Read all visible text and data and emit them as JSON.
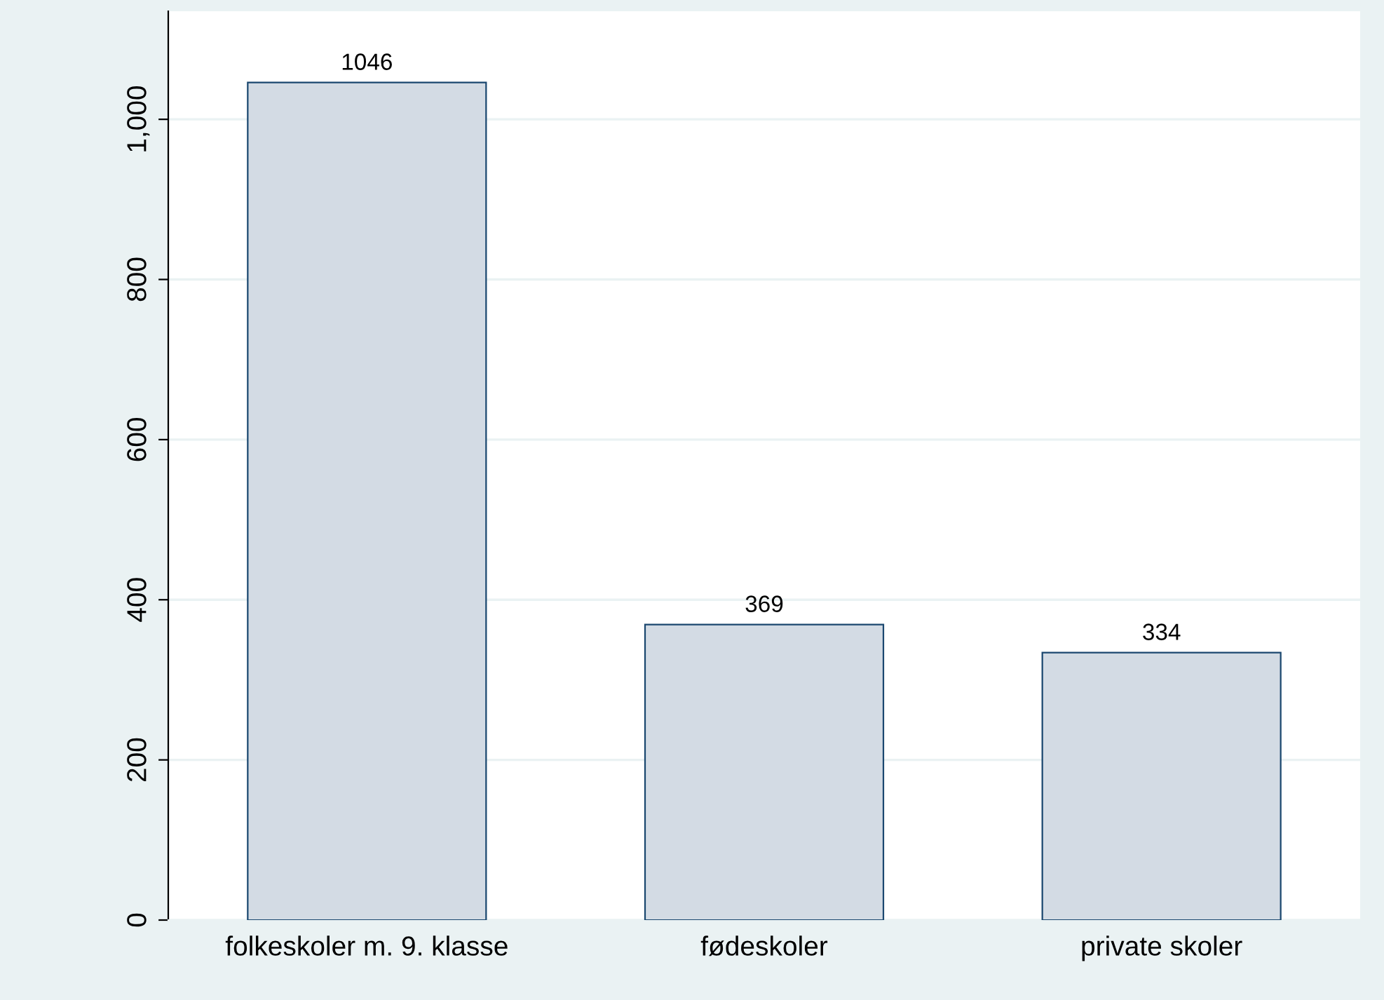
{
  "chart_data": {
    "type": "bar",
    "categories": [
      "folkeskoler m. 9. klasse",
      "fødeskoler",
      "private skoler"
    ],
    "values": [
      1046,
      369,
      334
    ],
    "color": "#d3dbe4",
    "data_labels": true,
    "ylim": [
      0,
      1135
    ],
    "yticks": [
      0,
      200,
      400,
      600,
      800,
      {
        "value": 1000,
        "label": "1,000"
      }
    ],
    "grid": "y"
  }
}
